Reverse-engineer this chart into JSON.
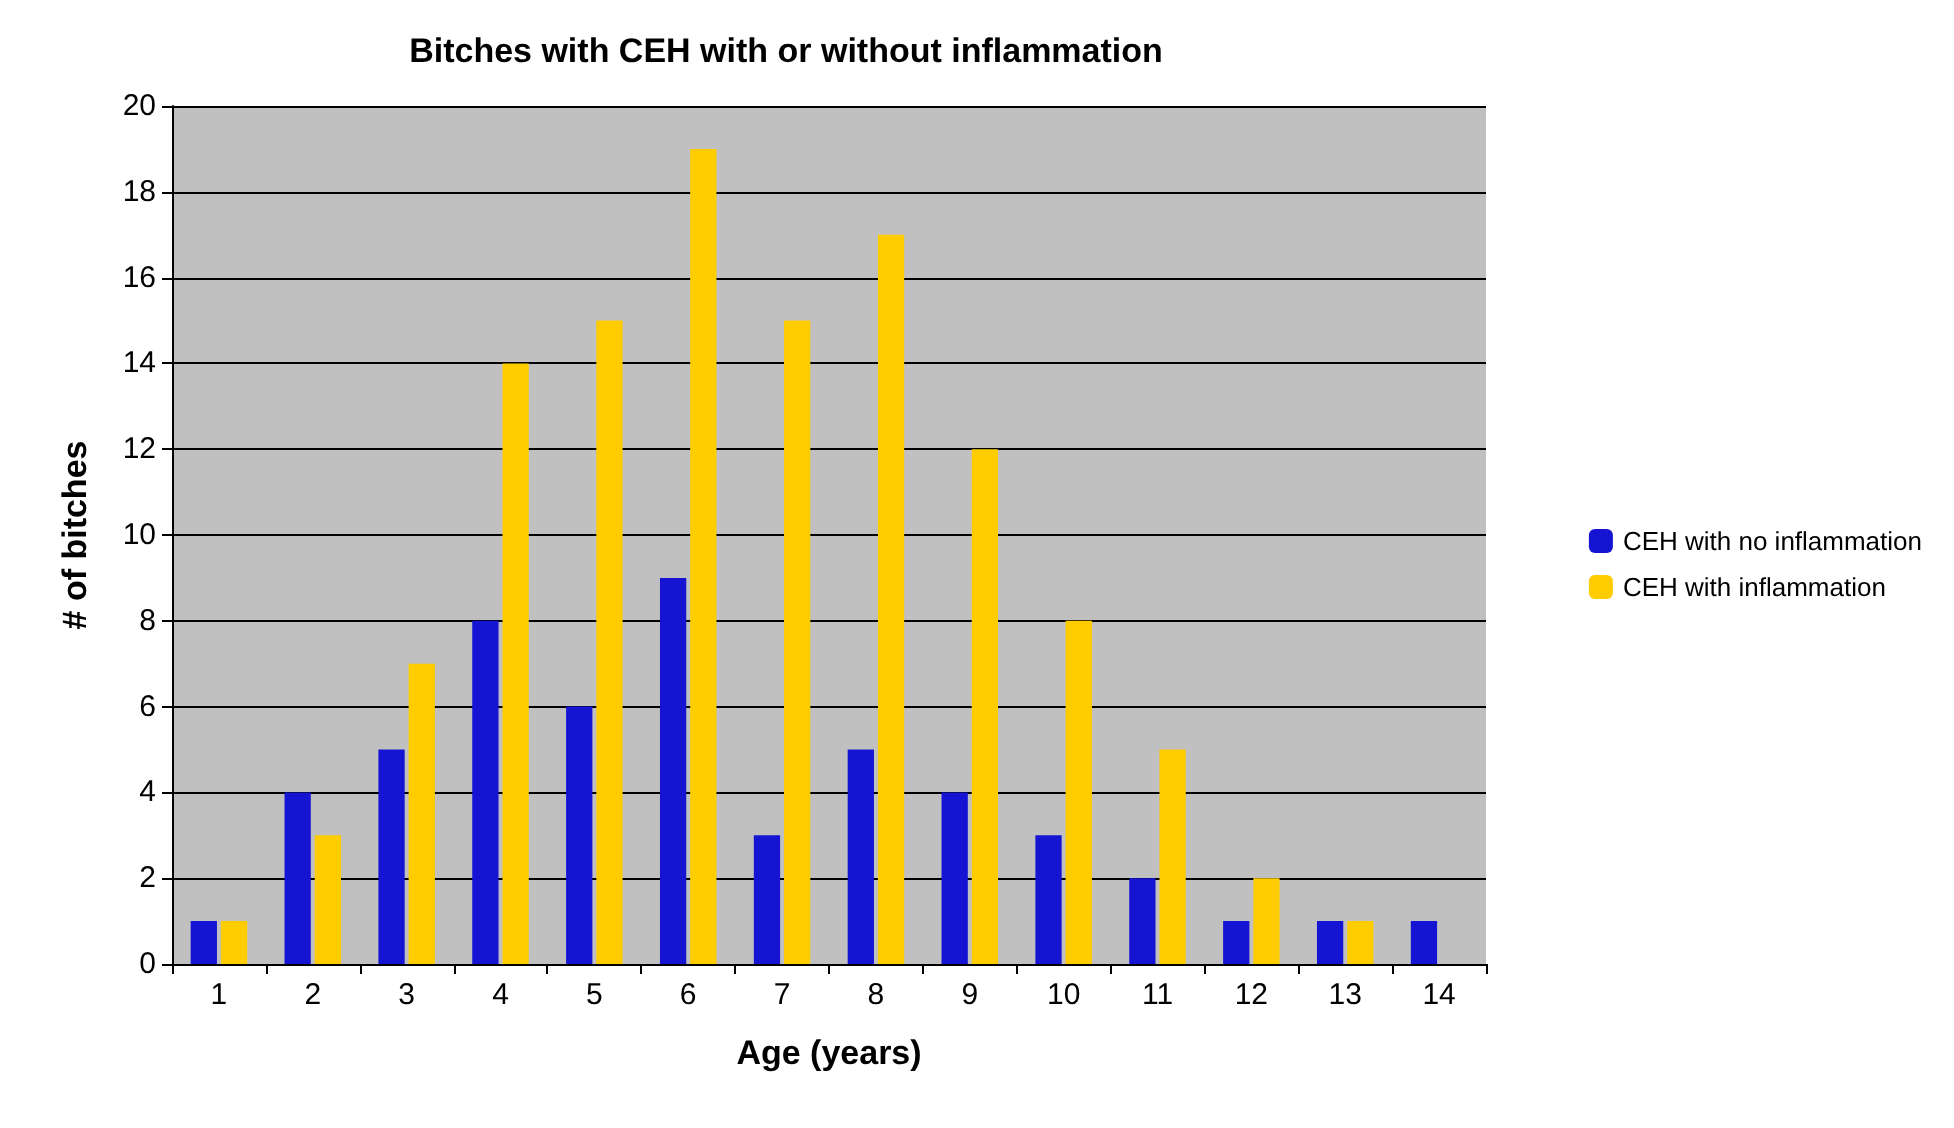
{
  "chart_data": {
    "type": "bar",
    "title": "Bitches with CEH with or without inflammation",
    "xlabel": "Age (years)",
    "ylabel": "# of bitches",
    "categories": [
      "1",
      "2",
      "3",
      "4",
      "5",
      "6",
      "7",
      "8",
      "9",
      "10",
      "11",
      "12",
      "13",
      "14"
    ],
    "series": [
      {
        "name": "CEH with no inflammation",
        "color": "#1414d2",
        "values": [
          1,
          4,
          5,
          8,
          6,
          9,
          3,
          5,
          4,
          3,
          2,
          1,
          1,
          1
        ]
      },
      {
        "name": "CEH with inflammation",
        "color": "#ffcc00",
        "values": [
          1,
          3,
          7,
          14,
          15,
          19,
          15,
          17,
          12,
          8,
          5,
          2,
          1,
          0
        ]
      }
    ],
    "ylim": [
      0,
      20
    ],
    "yticks": [
      0,
      2,
      4,
      6,
      8,
      10,
      12,
      14,
      16,
      18,
      20
    ],
    "grid": "y",
    "legend": "right"
  }
}
